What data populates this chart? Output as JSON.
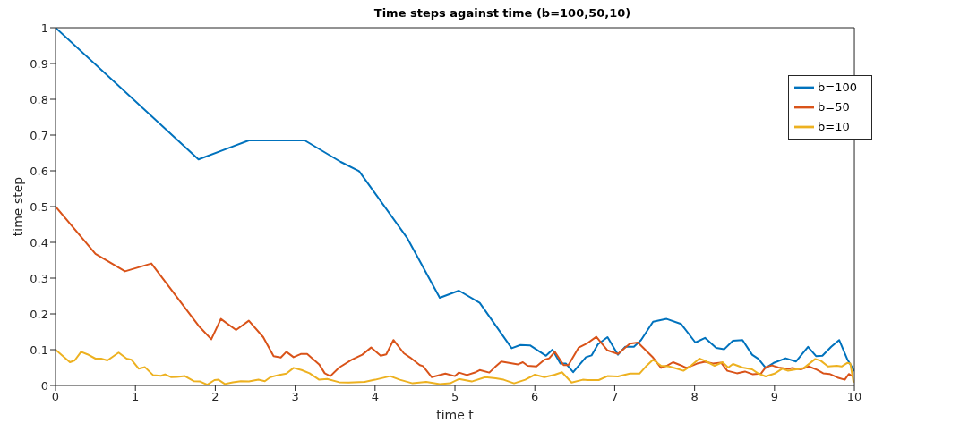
{
  "chart_data": {
    "type": "line",
    "title": "Time steps against time (b=100,50,10)",
    "xlabel": "time t",
    "ylabel": "time step",
    "xlim": [
      0,
      10
    ],
    "xticks": [
      0,
      1,
      2,
      3,
      4,
      5,
      6,
      7,
      8,
      9,
      10
    ],
    "ylim": [
      0,
      1
    ],
    "yticks": [
      0,
      0.1,
      0.2,
      0.3,
      0.4,
      0.5,
      0.6,
      0.7,
      0.8,
      0.9,
      1
    ],
    "grid": false,
    "legend": "top right",
    "marker": "none",
    "line_style": "solid",
    "series": [
      {
        "name": "b=100",
        "color": "#0072bd",
        "x": [
          0,
          1.79,
          2.42,
          3.12,
          3.57,
          3.8,
          4.4,
          4.81,
          5.05,
          5.31,
          5.71,
          5.82,
          5.94,
          6.14,
          6.22,
          6.32,
          6.39,
          6.48,
          6.64,
          6.71,
          6.79,
          6.91,
          7.04,
          7.13,
          7.24,
          7.33,
          7.48,
          7.65,
          7.83,
          8.01,
          8.13,
          8.27,
          8.37,
          8.48,
          8.6,
          8.72,
          8.8,
          8.89,
          8.99,
          9.14,
          9.27,
          9.42,
          9.52,
          9.6,
          9.71,
          9.81,
          9.91,
          10
        ],
        "values": [
          1,
          0.632,
          0.685,
          0.685,
          0.625,
          0.599,
          0.413,
          0.245,
          0.265,
          0.231,
          0.104,
          0.113,
          0.112,
          0.083,
          0.1,
          0.061,
          0.061,
          0.037,
          0.079,
          0.084,
          0.115,
          0.135,
          0.086,
          0.108,
          0.108,
          0.127,
          0.178,
          0.186,
          0.172,
          0.12,
          0.133,
          0.105,
          0.101,
          0.125,
          0.127,
          0.086,
          0.074,
          0.049,
          0.063,
          0.076,
          0.067,
          0.108,
          0.082,
          0.083,
          0.108,
          0.127,
          0.074,
          0.04
        ]
      },
      {
        "name": "b=50",
        "color": "#d95319",
        "x": [
          0,
          0.5,
          0.87,
          1.2,
          1.79,
          1.95,
          2.07,
          2.26,
          2.42,
          2.6,
          2.73,
          2.82,
          2.89,
          2.98,
          3.07,
          3.15,
          3.3,
          3.37,
          3.44,
          3.55,
          3.71,
          3.84,
          3.95,
          4.07,
          4.14,
          4.23,
          4.36,
          4.44,
          4.56,
          4.6,
          4.71,
          4.88,
          5.0,
          5.05,
          5.15,
          5.26,
          5.31,
          5.43,
          5.5,
          5.58,
          5.79,
          5.85,
          5.91,
          6.02,
          6.12,
          6.18,
          6.25,
          6.36,
          6.42,
          6.55,
          6.65,
          6.77,
          6.91,
          7.04,
          7.19,
          7.29,
          7.48,
          7.58,
          7.66,
          7.73,
          7.82,
          7.9,
          8.03,
          8.13,
          8.23,
          8.33,
          8.41,
          8.53,
          8.63,
          8.73,
          8.83,
          8.89,
          8.97,
          9.05,
          9.17,
          9.22,
          9.33,
          9.43,
          9.53,
          9.61,
          9.69,
          9.79,
          9.88,
          9.93,
          9.98
        ],
        "values": [
          0.5,
          0.368,
          0.319,
          0.341,
          0.167,
          0.129,
          0.186,
          0.155,
          0.181,
          0.135,
          0.082,
          0.078,
          0.094,
          0.079,
          0.088,
          0.088,
          0.059,
          0.034,
          0.026,
          0.05,
          0.072,
          0.086,
          0.106,
          0.083,
          0.087,
          0.127,
          0.09,
          0.078,
          0.057,
          0.054,
          0.023,
          0.033,
          0.026,
          0.036,
          0.029,
          0.037,
          0.043,
          0.036,
          0.051,
          0.067,
          0.059,
          0.065,
          0.055,
          0.053,
          0.072,
          0.076,
          0.094,
          0.057,
          0.057,
          0.106,
          0.117,
          0.136,
          0.098,
          0.088,
          0.117,
          0.12,
          0.078,
          0.049,
          0.056,
          0.065,
          0.057,
          0.049,
          0.061,
          0.066,
          0.061,
          0.064,
          0.041,
          0.034,
          0.039,
          0.031,
          0.033,
          0.051,
          0.056,
          0.05,
          0.046,
          0.049,
          0.045,
          0.053,
          0.044,
          0.034,
          0.032,
          0.022,
          0.016,
          0.032,
          0.025
        ]
      },
      {
        "name": "b=10",
        "color": "#edb120",
        "x": [
          0,
          0.18,
          0.24,
          0.32,
          0.4,
          0.5,
          0.57,
          0.65,
          0.79,
          0.89,
          0.95,
          1.04,
          1.12,
          1.22,
          1.32,
          1.37,
          1.45,
          1.52,
          1.62,
          1.73,
          1.81,
          1.9,
          1.99,
          2.04,
          2.12,
          2.22,
          2.32,
          2.42,
          2.54,
          2.62,
          2.69,
          2.79,
          2.89,
          2.98,
          3.08,
          3.18,
          3.3,
          3.4,
          3.55,
          3.67,
          3.87,
          4.0,
          4.19,
          4.31,
          4.47,
          4.64,
          4.81,
          4.94,
          5.05,
          5.21,
          5.38,
          5.51,
          5.61,
          5.74,
          5.88,
          6.0,
          6.12,
          6.25,
          6.34,
          6.46,
          6.6,
          6.66,
          6.8,
          6.91,
          7.04,
          7.19,
          7.31,
          7.39,
          7.48,
          7.58,
          7.68,
          7.78,
          7.86,
          7.96,
          8.06,
          8.13,
          8.25,
          8.35,
          8.42,
          8.48,
          8.6,
          8.72,
          8.8,
          8.89,
          9.0,
          9.1,
          9.17,
          9.27,
          9.37,
          9.51,
          9.58,
          9.67,
          9.78,
          9.84,
          9.91,
          9.95,
          9.99
        ],
        "values": [
          0.1,
          0.065,
          0.07,
          0.094,
          0.087,
          0.075,
          0.075,
          0.07,
          0.092,
          0.075,
          0.072,
          0.047,
          0.051,
          0.029,
          0.027,
          0.031,
          0.023,
          0.024,
          0.026,
          0.012,
          0.011,
          0.002,
          0.015,
          0.016,
          0.004,
          0.009,
          0.012,
          0.011,
          0.016,
          0.012,
          0.023,
          0.029,
          0.033,
          0.049,
          0.043,
          0.034,
          0.016,
          0.018,
          0.009,
          0.008,
          0.01,
          0.016,
          0.026,
          0.016,
          0.006,
          0.01,
          0.004,
          0.006,
          0.018,
          0.011,
          0.023,
          0.02,
          0.016,
          0.006,
          0.016,
          0.03,
          0.023,
          0.03,
          0.037,
          0.008,
          0.016,
          0.015,
          0.015,
          0.026,
          0.025,
          0.033,
          0.033,
          0.053,
          0.072,
          0.055,
          0.053,
          0.047,
          0.041,
          0.056,
          0.075,
          0.069,
          0.055,
          0.065,
          0.05,
          0.06,
          0.05,
          0.045,
          0.033,
          0.025,
          0.033,
          0.047,
          0.041,
          0.045,
          0.049,
          0.074,
          0.069,
          0.053,
          0.055,
          0.053,
          0.063,
          0.061,
          0.008
        ]
      }
    ]
  }
}
